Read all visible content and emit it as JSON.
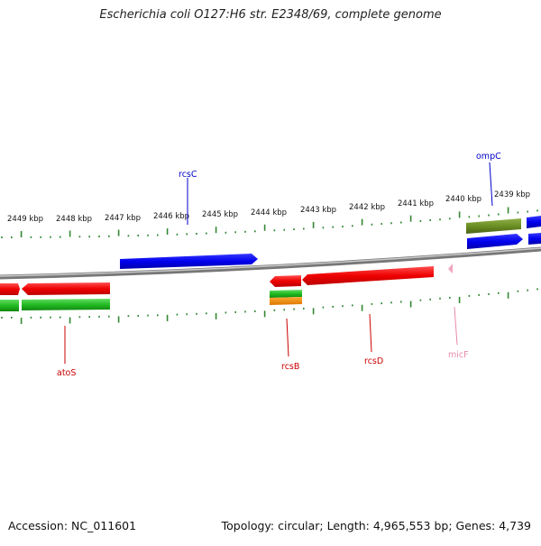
{
  "map": {
    "title": "Escherichia coli O127:H6 str. E2348/69, complete genome",
    "accession": "Accession: NC_011601",
    "summary": "Topology: circular; Length: 4,965,553 bp; Genes: 4,739",
    "scale_labels": [
      "2449 kbp",
      "2448 kbp",
      "2447 kbp",
      "2446 kbp",
      "2445 kbp",
      "2444 kbp",
      "2443 kbp",
      "2442 kbp",
      "2441 kbp",
      "2440 kbp",
      "2439 kbp"
    ],
    "genes": [
      {
        "name": "rcsC",
        "color": "#0000cc"
      },
      {
        "name": "ompC",
        "color": "#0000cc"
      },
      {
        "name": "atoS",
        "color": "#cc0000"
      },
      {
        "name": "rcsB",
        "color": "#cc0000"
      },
      {
        "name": "rcsD",
        "color": "#cc0000"
      },
      {
        "name": "micF",
        "color": "#e88aaa"
      }
    ],
    "colors": {
      "backbone": "#8a8a8a",
      "forward_cds": "#0000ee",
      "reverse_cds": "#ee0000",
      "rna": "#22bb22",
      "trna": "#6b8e23",
      "orange": "#ee8800",
      "tick": "#338833"
    }
  }
}
